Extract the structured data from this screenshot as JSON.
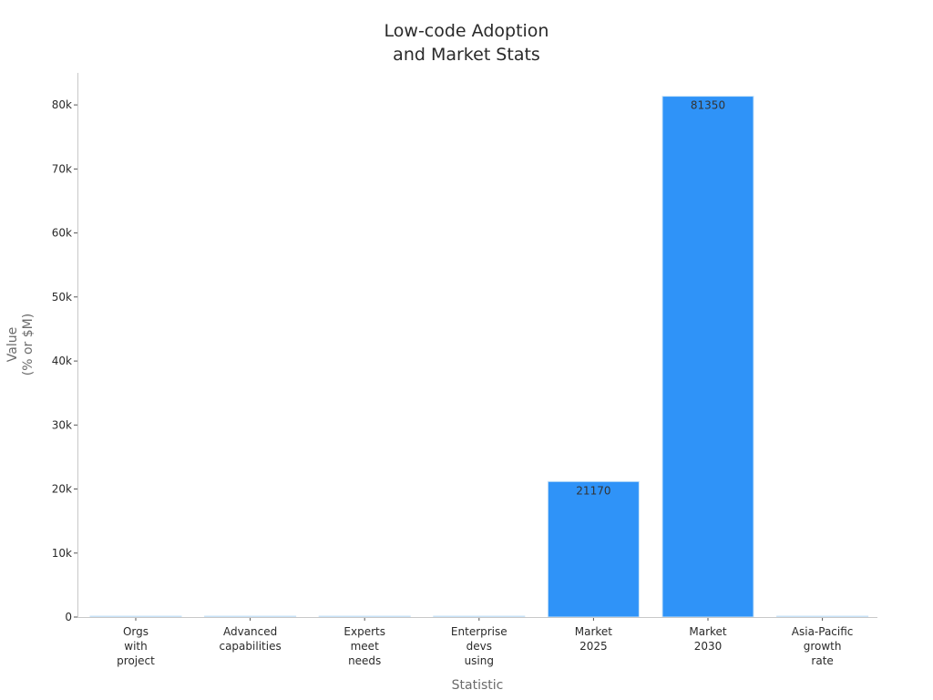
{
  "chart_data": {
    "type": "bar",
    "title": [
      "Low-code Adoption",
      "and Market Stats"
    ],
    "xlabel": "Statistic",
    "ylabel": [
      "Value",
      "(% or $M)"
    ],
    "categories": [
      [
        "Orgs",
        "with",
        "project"
      ],
      [
        "Advanced",
        "capabilities"
      ],
      [
        "Experts",
        "meet",
        "needs"
      ],
      [
        "Enterprise",
        "devs",
        "using"
      ],
      [
        "Market",
        "2025"
      ],
      [
        "Market",
        "2030"
      ],
      [
        "Asia-Pacific",
        "growth",
        "rate"
      ]
    ],
    "values": [
      0,
      0,
      0,
      0,
      21170,
      81350,
      0
    ],
    "data_labels": [
      "",
      "",
      "",
      "",
      "21170",
      "81350",
      ""
    ],
    "ylim": [
      0,
      85000
    ],
    "yticks": [
      0,
      10000,
      20000,
      30000,
      40000,
      50000,
      60000,
      70000,
      80000
    ],
    "ytick_labels": [
      "0",
      "10k",
      "20k",
      "30k",
      "40k",
      "50k",
      "60k",
      "70k",
      "80k"
    ],
    "grid": false,
    "legend": "none",
    "colors": {
      "bar": "#2f93f8",
      "bar_edge": "#c9e3f7",
      "axis": "#c8c8c8"
    }
  }
}
